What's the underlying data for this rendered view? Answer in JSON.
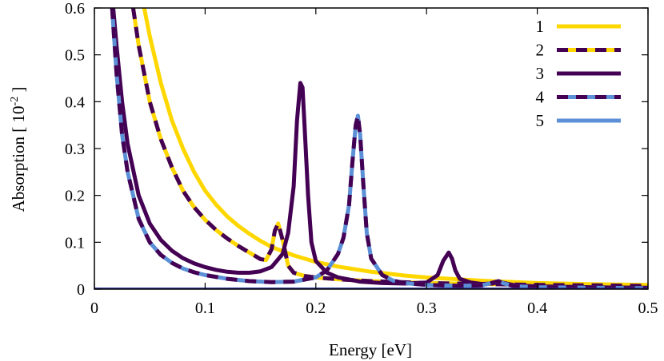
{
  "chart_data": {
    "type": "line",
    "title": "",
    "xlabel": "Energy [eV]",
    "ylabel": "Absorption [ 10",
    "ylabel_superscript": "-2",
    "ylabel_close": "]",
    "xlim": [
      0,
      0.5
    ],
    "ylim": [
      0,
      0.6
    ],
    "x_ticks": [
      "0",
      "0.1",
      "0.2",
      "0.3",
      "0.4",
      "0.5"
    ],
    "y_ticks": [
      "0",
      "0.1",
      "0.2",
      "0.3",
      "0.4",
      "0.5",
      "0.6"
    ],
    "grid": false,
    "legend_position": "top-right",
    "colors": {
      "yellow": "#FFD700",
      "purple": "#440154",
      "blue": "#5B8FD6",
      "baseline": "#2C2C8C"
    },
    "series": [
      {
        "name": "1",
        "style": "solid",
        "colors": [
          "#FFD700"
        ],
        "x": [
          0.045,
          0.05,
          0.06,
          0.07,
          0.08,
          0.09,
          0.1,
          0.11,
          0.12,
          0.13,
          0.14,
          0.15,
          0.16,
          0.18,
          0.2,
          0.22,
          0.25,
          0.28,
          0.3,
          0.35,
          0.4,
          0.45,
          0.5
        ],
        "y": [
          0.6,
          0.54,
          0.44,
          0.36,
          0.3,
          0.25,
          0.21,
          0.18,
          0.155,
          0.135,
          0.118,
          0.103,
          0.09,
          0.072,
          0.058,
          0.048,
          0.037,
          0.029,
          0.025,
          0.018,
          0.013,
          0.0105,
          0.009
        ]
      },
      {
        "name": "2",
        "style": "dashed",
        "colors": [
          "#440154",
          "#FFD700"
        ],
        "x": [
          0.035,
          0.04,
          0.05,
          0.06,
          0.07,
          0.08,
          0.09,
          0.1,
          0.11,
          0.12,
          0.13,
          0.14,
          0.15,
          0.155,
          0.16,
          0.163,
          0.166,
          0.17,
          0.175,
          0.18,
          0.19,
          0.2,
          0.22,
          0.25,
          0.3,
          0.35,
          0.4,
          0.45,
          0.5
        ],
        "y": [
          0.6,
          0.52,
          0.4,
          0.32,
          0.26,
          0.21,
          0.175,
          0.148,
          0.126,
          0.108,
          0.092,
          0.078,
          0.064,
          0.062,
          0.085,
          0.125,
          0.14,
          0.105,
          0.05,
          0.035,
          0.028,
          0.025,
          0.021,
          0.017,
          0.013,
          0.011,
          0.009,
          0.008,
          0.007
        ]
      },
      {
        "name": "3",
        "style": "solid",
        "colors": [
          "#440154"
        ],
        "x": [
          0.017,
          0.02,
          0.025,
          0.03,
          0.04,
          0.05,
          0.06,
          0.07,
          0.08,
          0.09,
          0.1,
          0.11,
          0.12,
          0.13,
          0.14,
          0.15,
          0.16,
          0.17,
          0.175,
          0.18,
          0.183,
          0.186,
          0.188,
          0.19,
          0.193,
          0.196,
          0.2,
          0.21,
          0.22,
          0.24,
          0.26,
          0.28,
          0.3,
          0.31,
          0.315,
          0.32,
          0.323,
          0.326,
          0.33,
          0.34,
          0.35,
          0.36,
          0.365,
          0.37,
          0.38,
          0.4,
          0.45,
          0.5
        ],
        "y": [
          0.6,
          0.52,
          0.4,
          0.31,
          0.2,
          0.14,
          0.105,
          0.082,
          0.066,
          0.055,
          0.047,
          0.041,
          0.037,
          0.035,
          0.035,
          0.038,
          0.047,
          0.075,
          0.12,
          0.22,
          0.36,
          0.44,
          0.43,
          0.34,
          0.2,
          0.1,
          0.06,
          0.035,
          0.025,
          0.016,
          0.013,
          0.012,
          0.014,
          0.03,
          0.06,
          0.078,
          0.065,
          0.04,
          0.022,
          0.014,
          0.011,
          0.012,
          0.016,
          0.013,
          0.008,
          0.006,
          0.004,
          0.003
        ]
      },
      {
        "name": "4",
        "style": "dashed",
        "colors": [
          "#440154",
          "#5B8FD6"
        ],
        "x": [
          0.016,
          0.02,
          0.025,
          0.03,
          0.04,
          0.05,
          0.06,
          0.07,
          0.08,
          0.09,
          0.1,
          0.12,
          0.14,
          0.16,
          0.18,
          0.2,
          0.21,
          0.22,
          0.225,
          0.23,
          0.233,
          0.236,
          0.238,
          0.24,
          0.243,
          0.246,
          0.25,
          0.26,
          0.27,
          0.28,
          0.3,
          0.33,
          0.35,
          0.36,
          0.365,
          0.37,
          0.38,
          0.4,
          0.45,
          0.5
        ],
        "y": [
          0.6,
          0.46,
          0.33,
          0.25,
          0.15,
          0.1,
          0.073,
          0.056,
          0.044,
          0.036,
          0.03,
          0.022,
          0.017,
          0.015,
          0.016,
          0.025,
          0.04,
          0.075,
          0.11,
          0.18,
          0.27,
          0.35,
          0.37,
          0.33,
          0.22,
          0.12,
          0.065,
          0.03,
          0.018,
          0.013,
          0.009,
          0.007,
          0.008,
          0.014,
          0.017,
          0.012,
          0.006,
          0.004,
          0.003,
          0.002
        ]
      },
      {
        "name": "5",
        "style": "solid",
        "colors": [
          "#5B8FD6"
        ],
        "x": [
          0,
          0.5
        ],
        "y": [
          0.0,
          0.0
        ]
      }
    ]
  }
}
